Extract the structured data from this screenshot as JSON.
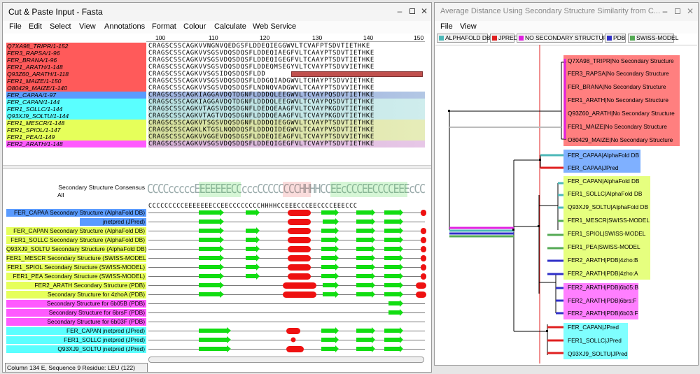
{
  "left_window": {
    "title": "Cut & Paste Input - Fasta",
    "menu": [
      "File",
      "Edit",
      "Select",
      "View",
      "Annotations",
      "Format",
      "Colour",
      "Calculate",
      "Web Service"
    ],
    "ruler": [
      "100",
      "110",
      "120",
      "130",
      "140",
      "150"
    ],
    "sequences": [
      {
        "name": "Q7XA98_TRIPR/1-152",
        "residues": "CRAGSCSSCAGKVVNGNVQEDGSFLDDEQIEGGWVLTCVAFPTSDVTIETHKE",
        "color": "#ff5a5a"
      },
      {
        "name": "FER3_RAPSA/1-96",
        "residues": "CRAGSCSSCAGKVVSGSVDQSDQSFLDDEQIAEGFVLTCAAYPTSDVTIETHKE",
        "color": "#ff5a5a"
      },
      {
        "name": "FER_BRANA/1-96",
        "residues": "CRAGSCSSCAGKVVSGSVDQSDQSFLDDEQIGEGFVLTCAAYPTSDVTIETHKE",
        "color": "#ff5a5a"
      },
      {
        "name": "FER1_ARATH/1-148",
        "residues": "CRAGSCSSCAGKVVSGSVDQSDQSFLDDEQMSEGYVLTCVAYPTSDVVIETHKE",
        "color": "#ff5a5a"
      },
      {
        "name": "Q93Z60_ARATH/1-118",
        "residues": "CRAGSCSSCAGKVVSGSIDQSDQSFLDD",
        "color": "#ff5a5a"
      },
      {
        "name": "FER1_MAIZE/1-150",
        "residues": "CRAGSCSSCAGKVVSGSVDQSDQSFLDDGQIADGWVLTCHAYPTSDVVIETHKE",
        "color": "#ff5a5a"
      },
      {
        "name": "O80429_MAIZE/1-140",
        "residues": "CRAGSCSSCAGKVVSGSVDQSDQSFLNDNQVADGWVLTCAAYPTSDVVIETHKE",
        "color": "#ff5a5a"
      },
      {
        "name": "FER_CAPAA/1-97",
        "residues": "CRAGSCSSCAGKIAGGAVDQTDGNFLDDDQLEEGWVLTCVAYPQSDVTIETHKE",
        "color": "#5a9bff"
      },
      {
        "name": "FER_CAPAN/1-144",
        "residues": "CRAGSCSSCAGKIAGGAVDQTDGNFLDDDQLEEGWVLTCVAYPQSDVTIETHKE",
        "color": "#5affff"
      },
      {
        "name": "FER1_SOLLC/1-144",
        "residues": "CRAGSCSSCAGKVTAGSVDQSDGNFLDEDQEAAGFVLTCVAYPKGDVTIETHKE",
        "color": "#5affff"
      },
      {
        "name": "Q93XJ9_SOLTU/1-144",
        "residues": "CRAGSCSSCAGKVTAGTVDQSDGNFLDDDQEAAGFVLTCVAYPKGDVTIETHKE",
        "color": "#5affff"
      },
      {
        "name": "FER1_MESCR/1-148",
        "residues": "CRAGSCSSCAGKVTSGSVDQSDGNFLDDDQIEGGWVLTCVAYPTSDVTIETHKE",
        "color": "#e6ff5a"
      },
      {
        "name": "FER1_SPIOL/1-147",
        "residues": "CRAGSCSSCAGKLKTGSLNQDDQSFLDDDQIDEGWVLTCAAYPVSDVTIETHKE",
        "color": "#e6ff5a"
      },
      {
        "name": "FER1_PEA/1-149",
        "residues": "CRAGSCSSCAGKVVGGEVDQSDGSFLDDEQIEAGFVLTCVAYPTSDVVIETHKE",
        "color": "#e6ff5a"
      },
      {
        "name": "FER2_ARATH/1-148",
        "residues": "CRAGSCSSCAGKVVSGSVDQSDQSFLDDEQIGEGFVLTCVAYPTSDVTIETHKE",
        "color": "#ff5aff"
      }
    ],
    "consensus_label": "Secondary Structure Consensus",
    "consensus_sublabel": "All",
    "consensus_logo": "CCCCcccccEEEEEEECCcccCCCCCCCCHHHHCCEEcCCCEECCCCEEEcCC",
    "consensus_string": "CCCCCCCCCEEEEEEECCEECCCCCCCCHHHHCCEEECCCEECCCCEEECCC",
    "annotations": [
      {
        "label": "FER_CAPAA Secondary Structure (AlphaFold DB)",
        "color": "#5a9bff"
      },
      {
        "label": "jnetpred (JPred)",
        "color": "#5a9bff"
      },
      {
        "label": "FER_CAPAN Secondary Structure (AlphaFold DB)",
        "color": "#e6ff5a"
      },
      {
        "label": "FER1_SOLLC Secondary Structure (AlphaFold DB)",
        "color": "#e6ff5a"
      },
      {
        "label": "Q93XJ9_SOLTU Secondary Structure (AlphaFold DB)",
        "color": "#e6ff5a"
      },
      {
        "label": "FER1_MESCR Secondary Structure (SWISS-MODEL)",
        "color": "#e6ff5a"
      },
      {
        "label": "FER1_SPIOL Secondary Structure (SWISS-MODEL)",
        "color": "#e6ff5a"
      },
      {
        "label": "FER1_PEA Secondary Structure (SWISS-MODEL)",
        "color": "#e6ff5a"
      },
      {
        "label": "FER2_ARATH Secondary Structure (PDB)",
        "color": "#e6ff5a"
      },
      {
        "label": "Secondary Structure for 4zhoA (PDB)",
        "color": "#e6ff5a"
      },
      {
        "label": "Secondary Structure for 6b05B (PDB)",
        "color": "#ff5aff"
      },
      {
        "label": "Secondary Structure for 6brsF (PDB)",
        "color": "#ff5aff"
      },
      {
        "label": "Secondary Structure for 6b03F (PDB)",
        "color": "#ff5aff"
      },
      {
        "label": "FER_CAPAN jnetpred (JPred)",
        "color": "#5affff"
      },
      {
        "label": "FER1_SOLLC jnetpred (JPred)",
        "color": "#5affff"
      },
      {
        "label": "Q93XJ9_SOLTU jnetpred (JPred)",
        "color": "#5affff"
      }
    ],
    "status": "Column 134  E, Sequence 9   Residue: LEU (122)"
  },
  "right_window": {
    "title": "Average Distance Using Secondary Structure Similarity from C...",
    "menu": [
      "File",
      "View"
    ],
    "legend": [
      {
        "label": "ALPHAFOLD DB",
        "color": "#4cb8b8"
      },
      {
        "label": "JPRED",
        "color": "#e02020"
      },
      {
        "label": "NO SECONDARY STRUCTURE",
        "color": "#e020e0"
      },
      {
        "label": "PDB",
        "color": "#3030c8"
      },
      {
        "label": "SWISS-MODEL",
        "color": "#55aa55"
      }
    ],
    "groups": [
      {
        "color": "#ff7f7f",
        "leaves": [
          "Q7XA98_TRIPR|No Secondary Structure",
          "FER3_RAPSA|No Secondary Structure",
          "FER_BRANA|No Secondary Structure",
          "FER1_ARATH|No Secondary Structure",
          "Q93Z60_ARATH|No Secondary Structure",
          "FER1_MAIZE|No Secondary Structure",
          "O80429_MAIZE|No Secondary Structure"
        ]
      },
      {
        "color": "#7fb0ff",
        "leaves": [
          "FER_CAPAA|AlphaFold DB",
          "FER_CAPAA|JPred"
        ]
      },
      {
        "color": "#e6ff7f",
        "leaves": [
          "FER_CAPAN|AlphaFold DB",
          "FER1_SOLLC|AlphaFold DB",
          "Q93XJ9_SOLTU|AlphaFold DB",
          "FER1_MESCR|SWISS-MODEL",
          "FER1_SPIOL|SWISS-MODEL",
          "FER1_PEA|SWISS-MODEL",
          "FER2_ARATH|PDB|4zho:B",
          "FER2_ARATH|PDB|4zho:A"
        ]
      },
      {
        "color": "#ff7fff",
        "leaves": [
          "FER2_ARATH|PDB|6b05:B",
          "FER2_ARATH|PDB|6brs:F",
          "FER2_ARATH|PDB|6b03:F"
        ]
      },
      {
        "color": "#7fffff",
        "leaves": [
          "FER_CAPAN|JPred",
          "FER1_SOLLC|JPred",
          "Q93XJ9_SOLTU|JPred"
        ]
      }
    ]
  }
}
